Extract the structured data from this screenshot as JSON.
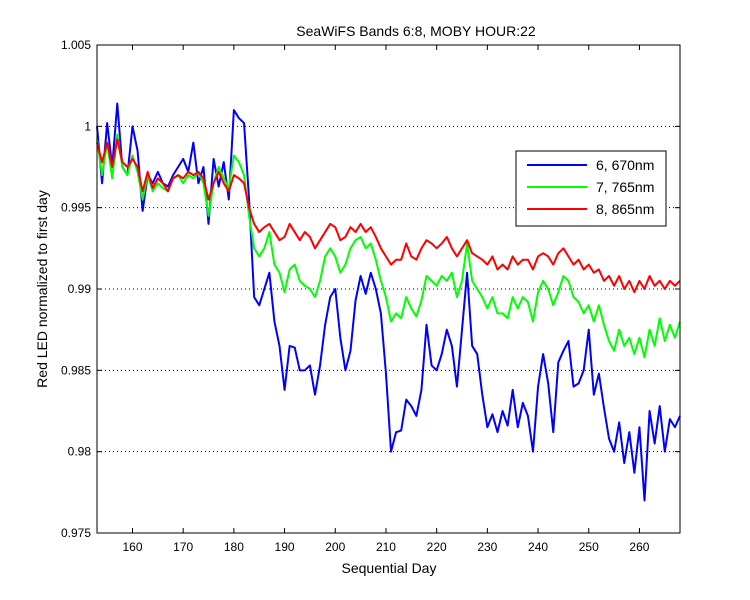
{
  "chart_data": {
    "type": "line",
    "title": "SeaWiFS Bands 6:8, MOBY HOUR:22",
    "xlabel": "Sequential Day",
    "ylabel": "Red LED normalized to first day",
    "xlim": [
      153,
      268
    ],
    "ylim": [
      0.975,
      1.005
    ],
    "xticks": [
      160,
      170,
      180,
      190,
      200,
      210,
      220,
      230,
      240,
      250,
      260
    ],
    "xtick_labels": [
      "160",
      "170",
      "180",
      "190",
      "200",
      "210",
      "220",
      "230",
      "240",
      "250",
      "260"
    ],
    "yticks": [
      0.975,
      0.98,
      0.985,
      0.99,
      0.995,
      1,
      1.005
    ],
    "ytick_labels": [
      "0.975",
      "0.98",
      "0.985",
      "0.99",
      "0.995",
      "1",
      "1.005"
    ],
    "grid": "horizontal-dotted",
    "legend_position": "top-right",
    "series": [
      {
        "name": "6, 670nm",
        "color": "#0000ff",
        "x": [
          153,
          154,
          155,
          156,
          157,
          158,
          159,
          160,
          161,
          162,
          163,
          164,
          165,
          166,
          167,
          168,
          169,
          170,
          171,
          172,
          173,
          174,
          175,
          176,
          177,
          178,
          179,
          180,
          181,
          182,
          183,
          184,
          185,
          186,
          187,
          188,
          189,
          190,
          191,
          192,
          193,
          194,
          195,
          196,
          197,
          198,
          199,
          200,
          201,
          202,
          203,
          204,
          205,
          206,
          207,
          208,
          209,
          210,
          211,
          212,
          213,
          214,
          215,
          216,
          217,
          218,
          219,
          220,
          221,
          222,
          223,
          224,
          225,
          226,
          227,
          228,
          229,
          230,
          231,
          232,
          233,
          234,
          235,
          236,
          237,
          238,
          239,
          240,
          241,
          242,
          243,
          244,
          245,
          246,
          247,
          248,
          249,
          250,
          251,
          252,
          253,
          254,
          255,
          256,
          257,
          258,
          259,
          260,
          261,
          262,
          263,
          264,
          265,
          266,
          267,
          268
        ],
        "values": [
          1.0,
          0.9965,
          1.0002,
          0.9975,
          1.0014,
          0.9975,
          0.997,
          1.0,
          0.9985,
          0.9948,
          0.997,
          0.9965,
          0.9972,
          0.9965,
          0.9963,
          0.997,
          0.9975,
          0.998,
          0.9972,
          0.999,
          0.9965,
          0.9975,
          0.994,
          0.998,
          0.9963,
          0.9978,
          0.9955,
          1.001,
          1.0005,
          1.0002,
          0.9955,
          0.9895,
          0.989,
          0.99,
          0.991,
          0.988,
          0.9865,
          0.9838,
          0.9865,
          0.9864,
          0.985,
          0.985,
          0.9853,
          0.9835,
          0.9853,
          0.9878,
          0.9895,
          0.99,
          0.987,
          0.985,
          0.9862,
          0.9893,
          0.9908,
          0.9897,
          0.991,
          0.99,
          0.9885,
          0.9848,
          0.98,
          0.9812,
          0.9813,
          0.9832,
          0.9828,
          0.9822,
          0.9838,
          0.9878,
          0.9853,
          0.985,
          0.986,
          0.9875,
          0.9865,
          0.984,
          0.9875,
          0.991,
          0.9865,
          0.986,
          0.9835,
          0.9815,
          0.9823,
          0.9812,
          0.9825,
          0.9816,
          0.9838,
          0.9815,
          0.983,
          0.9822,
          0.98,
          0.984,
          0.986,
          0.9842,
          0.9812,
          0.9855,
          0.9862,
          0.9868,
          0.984,
          0.9842,
          0.985,
          0.9875,
          0.9835,
          0.9848,
          0.9827,
          0.9808,
          0.98,
          0.9818,
          0.9793,
          0.9812,
          0.9787,
          0.9815,
          0.977,
          0.9825,
          0.9805,
          0.9828,
          0.98,
          0.982,
          0.9815,
          0.9822
        ]
      },
      {
        "name": "7, 765nm",
        "color": "#00ff00",
        "x": [
          153,
          154,
          155,
          156,
          157,
          158,
          159,
          160,
          161,
          162,
          163,
          164,
          165,
          166,
          167,
          168,
          169,
          170,
          171,
          172,
          173,
          174,
          175,
          176,
          177,
          178,
          179,
          180,
          181,
          182,
          183,
          184,
          185,
          186,
          187,
          188,
          189,
          190,
          191,
          192,
          193,
          194,
          195,
          196,
          197,
          198,
          199,
          200,
          201,
          202,
          203,
          204,
          205,
          206,
          207,
          208,
          209,
          210,
          211,
          212,
          213,
          214,
          215,
          216,
          217,
          218,
          219,
          220,
          221,
          222,
          223,
          224,
          225,
          226,
          227,
          228,
          229,
          230,
          231,
          232,
          233,
          234,
          235,
          236,
          237,
          238,
          239,
          240,
          241,
          242,
          243,
          244,
          245,
          246,
          247,
          248,
          249,
          250,
          251,
          252,
          253,
          254,
          255,
          256,
          257,
          258,
          259,
          260,
          261,
          262,
          263,
          264,
          265,
          266,
          267,
          268
        ],
        "values": [
          0.9992,
          0.997,
          0.999,
          0.9968,
          0.9995,
          0.9975,
          0.997,
          0.9982,
          0.9972,
          0.9955,
          0.997,
          0.996,
          0.9965,
          0.9962,
          0.996,
          0.9968,
          0.997,
          0.9965,
          0.997,
          0.9968,
          0.9972,
          0.9965,
          0.9945,
          0.9965,
          0.9975,
          0.9968,
          0.9962,
          0.9982,
          0.9978,
          0.997,
          0.9945,
          0.9925,
          0.992,
          0.9925,
          0.9935,
          0.9915,
          0.991,
          0.9898,
          0.9912,
          0.9915,
          0.9905,
          0.9902,
          0.99,
          0.9895,
          0.9905,
          0.992,
          0.9925,
          0.992,
          0.991,
          0.9915,
          0.9925,
          0.993,
          0.9932,
          0.9925,
          0.9928,
          0.9918,
          0.9905,
          0.9895,
          0.988,
          0.9885,
          0.9882,
          0.9895,
          0.9888,
          0.9883,
          0.9893,
          0.9908,
          0.9905,
          0.9902,
          0.9908,
          0.9905,
          0.991,
          0.9895,
          0.9905,
          0.9928,
          0.9905,
          0.99,
          0.9895,
          0.9888,
          0.9895,
          0.9885,
          0.9885,
          0.9882,
          0.9895,
          0.9888,
          0.9895,
          0.9892,
          0.988,
          0.9898,
          0.9905,
          0.99,
          0.989,
          0.9898,
          0.9908,
          0.9905,
          0.9895,
          0.9892,
          0.9885,
          0.989,
          0.988,
          0.989,
          0.9878,
          0.9868,
          0.9862,
          0.9875,
          0.9865,
          0.987,
          0.986,
          0.987,
          0.9858,
          0.9875,
          0.9865,
          0.9882,
          0.9868,
          0.9878,
          0.987,
          0.988
        ]
      },
      {
        "name": "8, 865nm",
        "color": "#ff0000",
        "x": [
          153,
          154,
          155,
          156,
          157,
          158,
          159,
          160,
          161,
          162,
          163,
          164,
          165,
          166,
          167,
          168,
          169,
          170,
          171,
          172,
          173,
          174,
          175,
          176,
          177,
          178,
          179,
          180,
          181,
          182,
          183,
          184,
          185,
          186,
          187,
          188,
          189,
          190,
          191,
          192,
          193,
          194,
          195,
          196,
          197,
          198,
          199,
          200,
          201,
          202,
          203,
          204,
          205,
          206,
          207,
          208,
          209,
          210,
          211,
          212,
          213,
          214,
          215,
          216,
          217,
          218,
          219,
          220,
          221,
          222,
          223,
          224,
          225,
          226,
          227,
          228,
          229,
          230,
          231,
          232,
          233,
          234,
          235,
          236,
          237,
          238,
          239,
          240,
          241,
          242,
          243,
          244,
          245,
          246,
          247,
          248,
          249,
          250,
          251,
          252,
          253,
          254,
          255,
          256,
          257,
          258,
          259,
          260,
          261,
          262,
          263,
          264,
          265,
          266,
          267,
          268
        ],
        "values": [
          0.999,
          0.9978,
          0.999,
          0.9975,
          0.9992,
          0.9978,
          0.9975,
          0.998,
          0.9975,
          0.996,
          0.9972,
          0.9962,
          0.9968,
          0.9965,
          0.996,
          0.9968,
          0.997,
          0.9968,
          0.9972,
          0.997,
          0.9972,
          0.9968,
          0.9955,
          0.9965,
          0.9972,
          0.9965,
          0.996,
          0.997,
          0.9968,
          0.9965,
          0.995,
          0.994,
          0.9935,
          0.9938,
          0.994,
          0.9935,
          0.993,
          0.9932,
          0.994,
          0.9935,
          0.993,
          0.9935,
          0.9932,
          0.9925,
          0.993,
          0.9935,
          0.994,
          0.9938,
          0.993,
          0.9932,
          0.9938,
          0.9935,
          0.994,
          0.9935,
          0.9938,
          0.9932,
          0.9925,
          0.992,
          0.9915,
          0.9918,
          0.9918,
          0.9928,
          0.992,
          0.9918,
          0.9925,
          0.993,
          0.9928,
          0.9925,
          0.9928,
          0.9932,
          0.9925,
          0.992,
          0.9925,
          0.993,
          0.9922,
          0.992,
          0.9918,
          0.9915,
          0.992,
          0.9912,
          0.9915,
          0.9912,
          0.992,
          0.9915,
          0.9918,
          0.9918,
          0.9912,
          0.992,
          0.9922,
          0.992,
          0.9915,
          0.9922,
          0.9925,
          0.992,
          0.9915,
          0.9918,
          0.9912,
          0.9915,
          0.991,
          0.9912,
          0.9905,
          0.9908,
          0.9902,
          0.9908,
          0.99,
          0.9905,
          0.9898,
          0.9905,
          0.99,
          0.9908,
          0.9902,
          0.9905,
          0.99,
          0.9905,
          0.9902,
          0.9905
        ]
      }
    ]
  }
}
